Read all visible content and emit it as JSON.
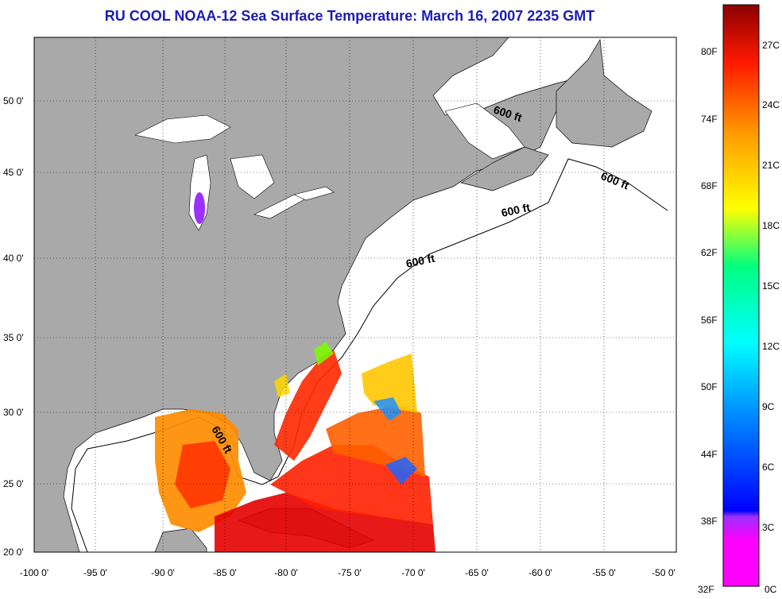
{
  "title": "RU COOL  NOAA-12  Sea Surface Temperature:  March 16, 2007 2235 GMT",
  "map": {
    "lon_labels": [
      "-100 0'",
      "-95 0'",
      "-90 0'",
      "-85 0'",
      "-80 0'",
      "-75 0'",
      "-70 0'",
      "-65 0'",
      "-60 0'",
      "-55 0'",
      "-50 0'"
    ],
    "lat_labels": [
      "50 0'",
      "45 0'",
      "40 0'",
      "35 0'",
      "30 0'",
      "25 0'",
      "20 0'"
    ],
    "contour_label": "600 ft",
    "land_color": "#a9a9a9",
    "water_color": "#ffffff"
  },
  "colorbar": {
    "fahrenheit_labels": [
      "80F",
      "74F",
      "68F",
      "62F",
      "56F",
      "50F",
      "44F",
      "38F",
      "32F"
    ],
    "celsius_labels": [
      "27C",
      "24C",
      "21C",
      "18C",
      "15C",
      "12C",
      "9C",
      "6C",
      "3C",
      "0C"
    ],
    "colors": [
      "#ff00ff",
      "#8a2be2",
      "#0000ff",
      "#0080ff",
      "#00ffff",
      "#00ff80",
      "#aaff00",
      "#ffff00",
      "#ffa500",
      "#ff4000",
      "#ff0000",
      "#8b0000"
    ]
  }
}
